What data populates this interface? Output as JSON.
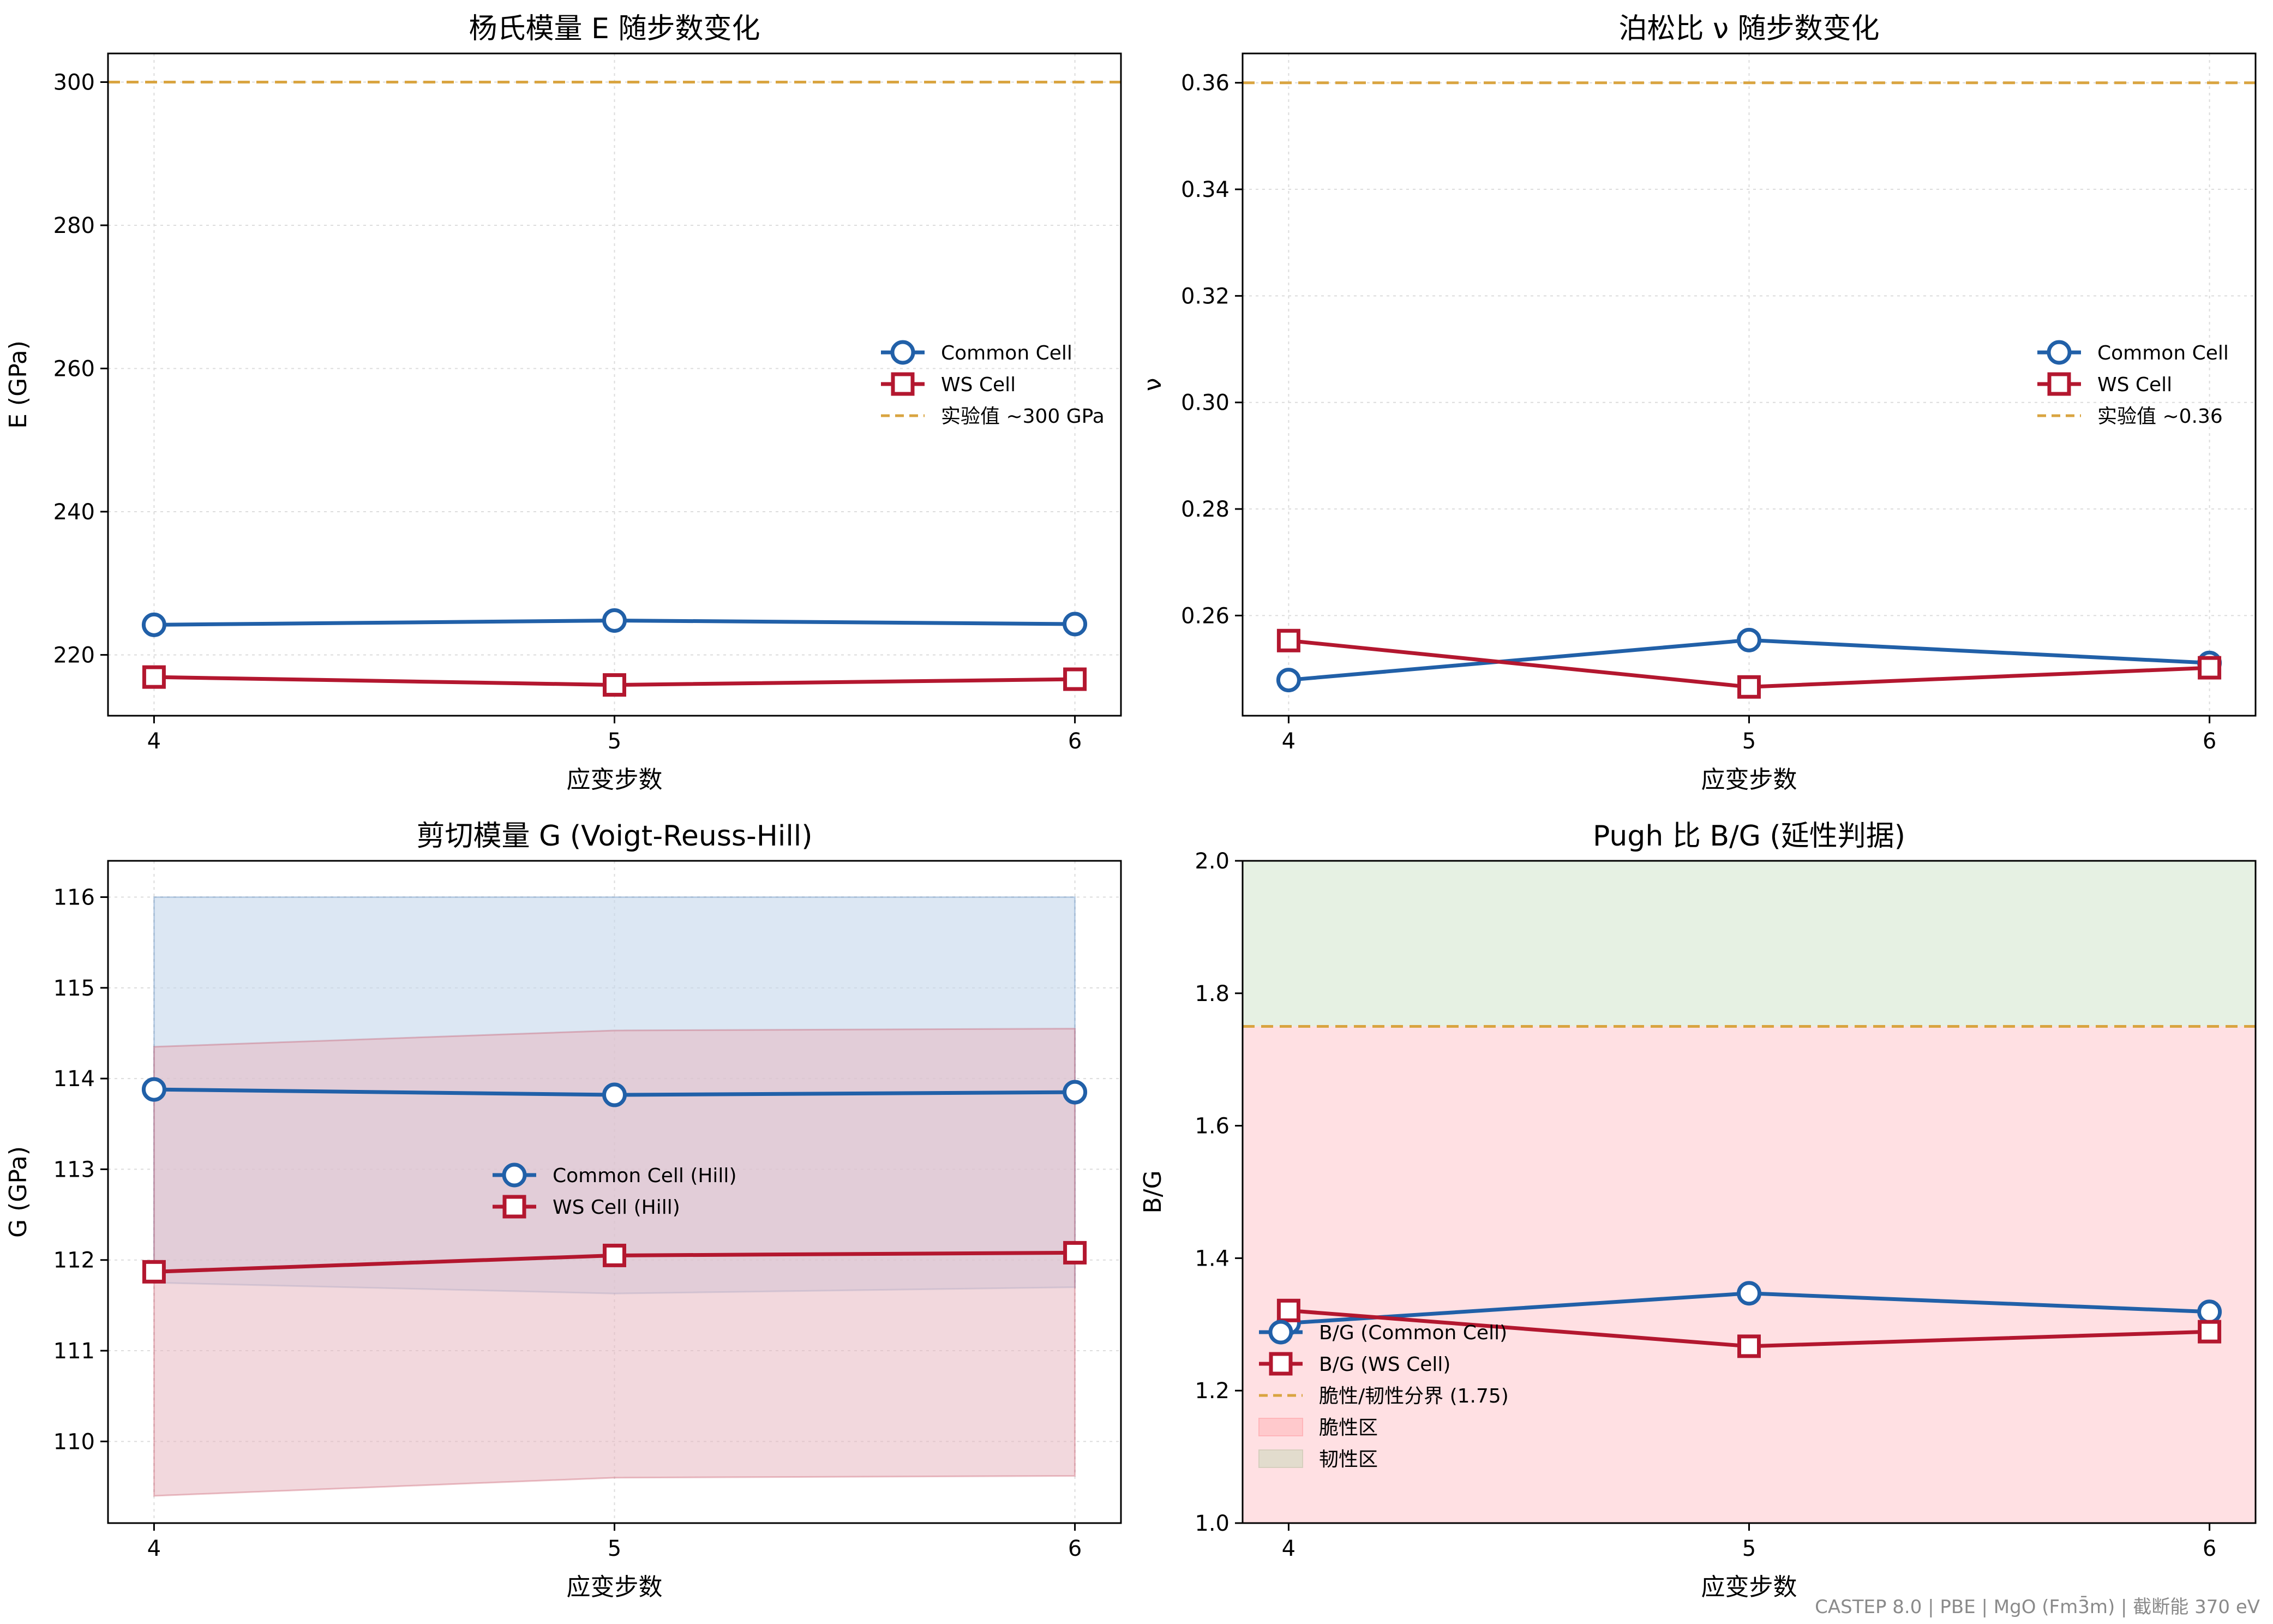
{
  "colors": {
    "common": "#2160a8",
    "ws": "#b3172f",
    "reference": "#d9a440",
    "band_common": "#c5d7eb",
    "band_ws": "#e7b8c1",
    "brittle": "#ffe0e3",
    "ductile": "#e6f1e3",
    "grid": "#dcdcdc"
  },
  "footer": "CASTEP 8.0 | PBE | MgO (Fm3̄m) | 截断能 370 eV",
  "chart_data": [
    {
      "id": "youngs",
      "type": "line",
      "title": "杨氏模量 E 随步数变化",
      "xlabel": "应变步数",
      "ylabel": "E (GPa)",
      "x": [
        4,
        5,
        6
      ],
      "xticks": [
        "4",
        "5",
        "6"
      ],
      "ylim": [
        211.5,
        304
      ],
      "yticks": [
        220,
        240,
        260,
        280,
        300
      ],
      "grid": true,
      "legend_position": "center-right",
      "series": [
        {
          "name": "Common Cell",
          "marker": "circle",
          "values": [
            224.2,
            224.8,
            224.3
          ]
        },
        {
          "name": "WS Cell",
          "marker": "square",
          "values": [
            216.9,
            215.8,
            216.6
          ]
        }
      ],
      "reference_lines": [
        {
          "name": "实验值 ~300 GPa",
          "y": 300
        }
      ]
    },
    {
      "id": "poisson",
      "type": "line",
      "title": "泊松比 ν 随步数变化",
      "xlabel": "应变步数",
      "ylabel": "ν",
      "x": [
        4,
        5,
        6
      ],
      "xticks": [
        "4",
        "5",
        "6"
      ],
      "ylim": [
        0.2412,
        0.3655
      ],
      "yticks": [
        0.26,
        0.28,
        0.3,
        0.32,
        0.34,
        0.36
      ],
      "ytick_labels": [
        "0.26",
        "0.28",
        "0.30",
        "0.32",
        "0.34",
        "0.36"
      ],
      "grid": true,
      "legend_position": "center-right",
      "series": [
        {
          "name": "Common Cell",
          "marker": "circle",
          "values": [
            0.2479,
            0.2554,
            0.2511
          ]
        },
        {
          "name": "WS Cell",
          "marker": "square",
          "values": [
            0.2553,
            0.2466,
            0.2502
          ]
        }
      ],
      "reference_lines": [
        {
          "name": "实验值 ~0.36",
          "y": 0.36
        }
      ]
    },
    {
      "id": "shear",
      "type": "line",
      "title": "剪切模量 G (Voigt-Reuss-Hill)",
      "xlabel": "应变步数",
      "ylabel": "G (GPa)",
      "x": [
        4,
        5,
        6
      ],
      "xticks": [
        "4",
        "5",
        "6"
      ],
      "ylim": [
        109.1,
        116.4
      ],
      "yticks": [
        110,
        111,
        112,
        113,
        114,
        115,
        116
      ],
      "grid": true,
      "legend_position": "center",
      "series": [
        {
          "name": "Common Cell (Hill)",
          "marker": "circle",
          "values": [
            113.88,
            113.82,
            113.85
          ],
          "band_low": [
            111.75,
            111.63,
            111.7
          ],
          "band_high": [
            116.0,
            116.0,
            116.0
          ]
        },
        {
          "name": "WS Cell (Hill)",
          "marker": "square",
          "values": [
            111.87,
            112.05,
            112.08
          ],
          "band_low": [
            109.4,
            109.6,
            109.62
          ],
          "band_high": [
            114.35,
            114.53,
            114.55
          ]
        }
      ],
      "reference_lines": []
    },
    {
      "id": "pugh",
      "type": "line",
      "title": "Pugh 比 B/G (延性判据)",
      "xlabel": "应变步数",
      "ylabel": "B/G",
      "x": [
        4,
        5,
        6
      ],
      "xticks": [
        "4",
        "5",
        "6"
      ],
      "ylim": [
        1.0,
        2.0
      ],
      "yticks": [
        1.0,
        1.2,
        1.4,
        1.6,
        1.8,
        2.0
      ],
      "ytick_labels": [
        "1.0",
        "1.2",
        "1.4",
        "1.6",
        "1.8",
        "2.0"
      ],
      "grid": false,
      "legend_position": "lower-left",
      "series": [
        {
          "name": "B/G (Common Cell)",
          "marker": "circle",
          "values": [
            1.302,
            1.347,
            1.319
          ]
        },
        {
          "name": "B/G (WS Cell)",
          "marker": "square",
          "values": [
            1.321,
            1.267,
            1.289
          ]
        }
      ],
      "reference_lines": [
        {
          "name": "脆性/韧性分界 (1.75)",
          "y": 1.75
        }
      ],
      "regions": [
        {
          "name": "脆性区",
          "from": 1.0,
          "to": 1.75,
          "color_key": "brittle"
        },
        {
          "name": "韧性区",
          "from": 1.75,
          "to": 2.0,
          "color_key": "ductile"
        }
      ]
    }
  ]
}
